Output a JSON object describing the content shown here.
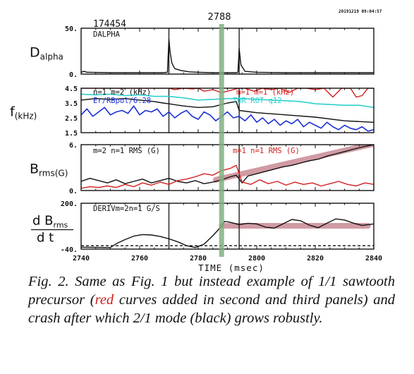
{
  "figure": {
    "shot_number": "174454",
    "timestamp": "20191219  09:04:57",
    "marker_time_label": "2788",
    "xlabel": "TIME (msec)",
    "x_ticks": [
      "2740",
      "2760",
      "2780",
      "2800",
      "2820",
      "2840"
    ],
    "colors": {
      "black": "#111111",
      "red": "#d42020",
      "blue": "#1b2fd6",
      "cyan": "#2fd0d0",
      "marker": "#7fb27f",
      "fit": "#c98a94"
    }
  },
  "chart_data": [
    {
      "type": "line",
      "panel_id": "dalpha",
      "ylabel_main": "D",
      "ylabel_sub": "alpha",
      "y_ticks": [
        "50.",
        "0."
      ],
      "ylim": [
        0,
        50
      ],
      "xlim": [
        2740,
        2840
      ],
      "annotations": [
        {
          "text": "DALPHA",
          "color": "black"
        }
      ],
      "vlines": [
        2770,
        2794
      ],
      "series": [
        {
          "color": "black",
          "x": [
            2740,
            2741,
            2742,
            2750,
            2760,
            2768,
            2769.5,
            2770,
            2770.4,
            2771,
            2772,
            2774,
            2777,
            2780,
            2785,
            2790,
            2793,
            2793.6,
            2794,
            2794.6,
            2796,
            2800,
            2810,
            2820,
            2830,
            2840
          ],
          "y": [
            2,
            3,
            2,
            1.5,
            1.5,
            1.5,
            2,
            38,
            24,
            12,
            6,
            4,
            2.5,
            2,
            1.5,
            1.5,
            1.5,
            2,
            28,
            10,
            3,
            2,
            1.5,
            1.5,
            1.5,
            1.5
          ]
        }
      ]
    },
    {
      "type": "line",
      "panel_id": "freq",
      "ylabel_main": "f",
      "ylabel_sub": "(kHz)",
      "y_ticks": [
        "4.5",
        "3.5",
        "2.5",
        "1.5"
      ],
      "ylim": [
        1.5,
        4.5
      ],
      "xlim": [
        2740,
        2840
      ],
      "annotations": [
        {
          "text": "n=1 m=2 (kHz)",
          "color": "black"
        },
        {
          "text": "Er/RBpol/6.28",
          "color": "blue"
        },
        {
          "text": "m=1 m=1 (kHz)",
          "color": "red"
        },
        {
          "text": "TOR ROT q12",
          "color": "cyan"
        }
      ],
      "vlines": [
        2770,
        2794
      ],
      "series": [
        {
          "color": "black",
          "x": [
            2740,
            2745,
            2750,
            2755,
            2760,
            2765,
            2768,
            2770,
            2775,
            2780,
            2785,
            2790,
            2793,
            2794,
            2800,
            2810,
            2820,
            2830,
            2840
          ],
          "y": [
            3.7,
            3.8,
            3.75,
            3.8,
            3.7,
            3.6,
            3.5,
            3.45,
            3.3,
            3.2,
            3.25,
            3.5,
            3.6,
            3.0,
            2.85,
            2.7,
            2.55,
            2.3,
            2.2
          ]
        },
        {
          "color": "cyan",
          "x": [
            2740,
            2745,
            2750,
            2755,
            2760,
            2765,
            2770,
            2775,
            2780,
            2785,
            2790,
            2795,
            2800,
            2805,
            2810,
            2815,
            2820,
            2825,
            2830,
            2835,
            2840
          ],
          "y": [
            4.1,
            4.05,
            4.1,
            4.0,
            4.05,
            3.95,
            3.95,
            3.85,
            3.7,
            3.75,
            3.8,
            3.8,
            3.75,
            3.7,
            3.65,
            3.6,
            3.45,
            3.4,
            3.35,
            3.35,
            3.2
          ]
        },
        {
          "color": "blue",
          "x": [
            2740,
            2742,
            2744,
            2746,
            2748,
            2750,
            2752,
            2754,
            2756,
            2758,
            2760,
            2762,
            2764,
            2766,
            2768,
            2770,
            2772,
            2774,
            2776,
            2778,
            2780,
            2782,
            2784,
            2786,
            2788,
            2790,
            2792,
            2794,
            2796,
            2798,
            2800,
            2802,
            2804,
            2806,
            2808,
            2810,
            2812,
            2814,
            2816,
            2818,
            2820,
            2822,
            2824,
            2826,
            2828,
            2830,
            2832,
            2834,
            2836,
            2838,
            2840
          ],
          "y": [
            2.7,
            3.1,
            2.6,
            2.9,
            3.2,
            2.7,
            2.9,
            3.0,
            2.8,
            3.3,
            2.7,
            3.0,
            2.9,
            3.1,
            2.6,
            2.9,
            2.5,
            2.8,
            3.0,
            2.6,
            2.4,
            2.9,
            2.7,
            2.3,
            2.6,
            2.9,
            2.5,
            2.6,
            2.3,
            2.7,
            2.2,
            2.5,
            2.1,
            2.4,
            2.0,
            2.3,
            2.1,
            2.4,
            1.9,
            2.2,
            2.0,
            1.8,
            2.2,
            1.9,
            1.7,
            2.0,
            1.8,
            1.7,
            1.9,
            1.6,
            1.7
          ]
        },
        {
          "color": "red",
          "x": [
            2740,
            2745,
            2750,
            2755,
            2760,
            2765,
            2770,
            2772,
            2775,
            2778,
            2780,
            2782,
            2785,
            2788,
            2790,
            2792,
            2794,
            2796,
            2799,
            2802,
            2805,
            2808,
            2811,
            2814,
            2817,
            2820,
            2823,
            2826,
            2829,
            2832,
            2834,
            2836,
            2838,
            2840
          ],
          "y": [
            4.5,
            4.5,
            4.5,
            4.5,
            4.5,
            4.5,
            4.5,
            4.4,
            4.5,
            4.45,
            4.5,
            4.3,
            4.4,
            4.2,
            4.3,
            4.4,
            4.5,
            4.5,
            4.3,
            4.5,
            4.4,
            4.5,
            4.2,
            4.5,
            4.5,
            4.4,
            4.5,
            3.9,
            4.5,
            4.5,
            3.9,
            4.0,
            4.5,
            4.5
          ]
        }
      ]
    },
    {
      "type": "line",
      "panel_id": "brms",
      "ylabel_main": "B",
      "ylabel_sub": "rms(G)",
      "y_ticks": [
        "6.",
        "0."
      ],
      "ylim": [
        0,
        6
      ],
      "xlim": [
        2740,
        2840
      ],
      "annotations": [
        {
          "text": "m=2 n=1 RMS (G)",
          "color": "black"
        },
        {
          "text": "m=1 n=1 RMS (G)",
          "color": "red"
        }
      ],
      "vlines": [
        2770,
        2794
      ],
      "fit_line": {
        "x": [
          2786,
          2840
        ],
        "y": [
          1.4,
          6.1
        ]
      },
      "series": [
        {
          "color": "black",
          "x": [
            2740,
            2743,
            2746,
            2749,
            2752,
            2755,
            2758,
            2761,
            2764,
            2767,
            2770,
            2773,
            2776,
            2779,
            2782,
            2785,
            2788,
            2791,
            2793,
            2795,
            2797,
            2800,
            2803,
            2806,
            2809,
            2812,
            2815,
            2818,
            2821,
            2824,
            2827,
            2830,
            2833,
            2836,
            2840
          ],
          "y": [
            1.2,
            1.6,
            1.3,
            1.0,
            1.4,
            0.9,
            1.2,
            1.5,
            1.0,
            1.3,
            1.6,
            1.2,
            1.0,
            1.3,
            0.9,
            1.1,
            1.4,
            1.8,
            2.0,
            1.0,
            1.9,
            2.2,
            2.5,
            2.8,
            3.1,
            3.3,
            3.6,
            3.9,
            4.1,
            4.5,
            4.8,
            5.1,
            5.4,
            5.7,
            6.0
          ]
        },
        {
          "color": "red",
          "x": [
            2740,
            2743,
            2746,
            2749,
            2752,
            2755,
            2758,
            2761,
            2764,
            2767,
            2770,
            2773,
            2776,
            2779,
            2782,
            2785,
            2788,
            2791,
            2793,
            2795,
            2798,
            2801,
            2804,
            2807,
            2810,
            2813,
            2816,
            2819,
            2822,
            2825,
            2828,
            2831,
            2834,
            2837,
            2840
          ],
          "y": [
            0.3,
            0.5,
            0.4,
            0.6,
            0.4,
            0.8,
            0.5,
            1.0,
            0.7,
            1.1,
            0.8,
            1.3,
            1.5,
            1.8,
            2.2,
            2.0,
            2.6,
            2.9,
            3.3,
            1.1,
            0.8,
            1.4,
            0.9,
            1.2,
            0.7,
            1.1,
            0.8,
            1.0,
            0.6,
            0.9,
            1.2,
            0.8,
            0.6,
            1.0,
            0.8
          ]
        }
      ]
    },
    {
      "type": "line",
      "panel_id": "deriv",
      "ylabel_num": "d B",
      "ylabel_num_sub": "rms",
      "ylabel_den": "d t",
      "y_ticks": [
        "200.",
        "-40."
      ],
      "ylim": [
        -40,
        200
      ],
      "xlim": [
        2740,
        2840
      ],
      "annotations": [
        {
          "text": "DERIVm=2n=1 G/S",
          "color": "black"
        }
      ],
      "vlines": [
        2770,
        2794
      ],
      "zero_line": 0,
      "fit_line": {
        "x": [
          2788,
          2838
        ],
        "y": [
          82,
          82
        ]
      },
      "series": [
        {
          "color": "black",
          "x": [
            2740,
            2750,
            2752,
            2755,
            2758,
            2761,
            2764,
            2767,
            2770,
            2773,
            2776,
            2779,
            2782,
            2785,
            2788,
            2789,
            2791,
            2794,
            2797,
            2800,
            2803,
            2806,
            2809,
            2812,
            2815,
            2818,
            2821,
            2824,
            2827,
            2830,
            2833,
            2836,
            2840
          ],
          "y": [
            -30,
            -32,
            -12,
            10,
            28,
            36,
            34,
            26,
            14,
            -2,
            -22,
            -32,
            -14,
            30,
            80,
            105,
            100,
            88,
            95,
            92,
            75,
            70,
            92,
            115,
            108,
            85,
            72,
            96,
            118,
            112,
            96,
            84,
            92
          ]
        }
      ]
    }
  ],
  "caption": {
    "part1": "Fig. 2. Same as Fig. 1 but instead example of 1/1 sawtooth precursor (",
    "red_word": "red",
    "part2": " curves added in second and third panels) and crash after which 2/1 mode (black) grows robustly."
  }
}
